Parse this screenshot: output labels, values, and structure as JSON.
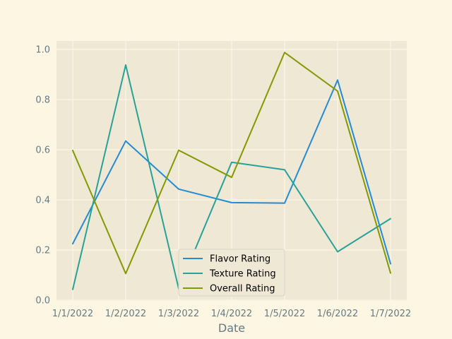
{
  "chart_data": {
    "type": "line",
    "xlabel": "Date",
    "ylabel": "",
    "categories": [
      "1/1/2022",
      "1/2/2022",
      "1/3/2022",
      "1/4/2022",
      "1/5/2022",
      "1/6/2022",
      "1/7/2022"
    ],
    "ylim": [
      0.0,
      1.0
    ],
    "yticks": [
      "0.0",
      "0.2",
      "0.4",
      "0.6",
      "0.8",
      "1.0"
    ],
    "grid": true,
    "legend_position": "bottom-center",
    "series": [
      {
        "name": "Flavor Rating",
        "color": "#268bd2",
        "values": [
          0.225,
          0.635,
          0.443,
          0.389,
          0.387,
          0.878,
          0.145
        ]
      },
      {
        "name": "Texture Rating",
        "color": "#2aa198",
        "values": [
          0.043,
          0.938,
          0.046,
          0.55,
          0.52,
          0.193,
          0.325
        ]
      },
      {
        "name": "Overall Rating",
        "color": "#859900",
        "values": [
          0.597,
          0.106,
          0.598,
          0.49,
          0.988,
          0.834,
          0.108
        ]
      }
    ]
  },
  "colors": {
    "page_background": "#fdf6e3",
    "plot_background": "#eee8d5",
    "grid": "#fdf6e3",
    "text": "#657b83"
  }
}
